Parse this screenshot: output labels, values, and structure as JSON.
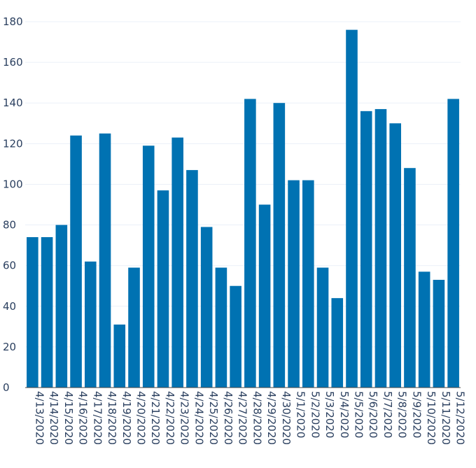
{
  "chart_data": {
    "type": "bar",
    "title": "",
    "xlabel": "",
    "ylabel": "",
    "ylim": [
      0,
      180
    ],
    "yticks": [
      0,
      20,
      40,
      60,
      80,
      100,
      120,
      140,
      160,
      180
    ],
    "grid": true,
    "color": "#0072b2",
    "categories": [
      "4/13/2020",
      "4/14/2020",
      "4/15/2020",
      "4/16/2020",
      "4/17/2020",
      "4/18/2020",
      "4/19/2020",
      "4/20/2020",
      "4/21/2020",
      "4/22/2020",
      "4/23/2020",
      "4/24/2020",
      "4/25/2020",
      "4/26/2020",
      "4/27/2020",
      "4/28/2020",
      "4/29/2020",
      "4/30/2020",
      "5/1/2020",
      "5/2/2020",
      "5/3/2020",
      "5/4/2020",
      "5/5/2020",
      "5/6/2020",
      "5/7/2020",
      "5/8/2020",
      "5/9/2020",
      "5/10/2020",
      "5/11/2020",
      "5/12/2020"
    ],
    "values": [
      74,
      74,
      80,
      124,
      62,
      125,
      31,
      59,
      119,
      97,
      123,
      107,
      79,
      59,
      50,
      142,
      90,
      140,
      102,
      102,
      59,
      44,
      176,
      136,
      137,
      130,
      108,
      57,
      53,
      142
    ]
  }
}
